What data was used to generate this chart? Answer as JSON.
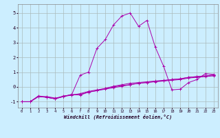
{
  "xlabel": "Windchill (Refroidissement éolien,°C)",
  "background_color": "#cceeff",
  "line_color": "#aa00aa",
  "grid_color": "#aabbbb",
  "xlim": [
    -0.5,
    23.5
  ],
  "ylim": [
    -1.4,
    5.6
  ],
  "xticks": [
    0,
    1,
    2,
    3,
    4,
    5,
    6,
    7,
    8,
    9,
    10,
    11,
    12,
    13,
    14,
    15,
    16,
    17,
    18,
    19,
    20,
    21,
    22,
    23
  ],
  "yticks": [
    -1,
    0,
    1,
    2,
    3,
    4,
    5
  ],
  "lines_x": [
    0,
    1,
    2,
    3,
    4,
    5,
    6,
    7,
    8,
    9,
    10,
    11,
    12,
    13,
    14,
    15,
    16,
    17,
    18,
    19,
    20,
    21,
    22,
    23
  ],
  "line1_y": [
    -1.0,
    -1.0,
    -0.65,
    -0.65,
    -0.75,
    -0.65,
    -0.55,
    -0.45,
    -0.3,
    -0.2,
    -0.1,
    0.0,
    0.1,
    0.15,
    0.25,
    0.3,
    0.35,
    0.4,
    0.45,
    0.5,
    0.6,
    0.65,
    0.7,
    0.75
  ],
  "line2_y": [
    -1.0,
    -1.0,
    -0.6,
    -0.7,
    -0.8,
    -0.6,
    -0.55,
    -0.5,
    -0.35,
    -0.25,
    -0.15,
    -0.05,
    0.05,
    0.15,
    0.25,
    0.3,
    0.38,
    0.42,
    0.5,
    0.55,
    0.65,
    0.7,
    0.75,
    0.8
  ],
  "line3_y": [
    -1.0,
    -1.0,
    -0.65,
    -0.7,
    -0.8,
    -0.65,
    -0.5,
    -0.55,
    -0.35,
    -0.25,
    -0.1,
    0.05,
    0.15,
    0.25,
    0.3,
    0.35,
    0.4,
    0.45,
    0.5,
    0.55,
    0.65,
    0.7,
    0.75,
    0.8
  ],
  "line4_y": [
    -1.0,
    -1.0,
    -0.65,
    -0.7,
    -0.8,
    -0.65,
    -0.5,
    0.8,
    1.0,
    2.6,
    3.2,
    4.2,
    4.8,
    5.0,
    4.1,
    4.5,
    2.7,
    1.4,
    -0.2,
    -0.15,
    0.3,
    0.5,
    0.9,
    0.85
  ]
}
